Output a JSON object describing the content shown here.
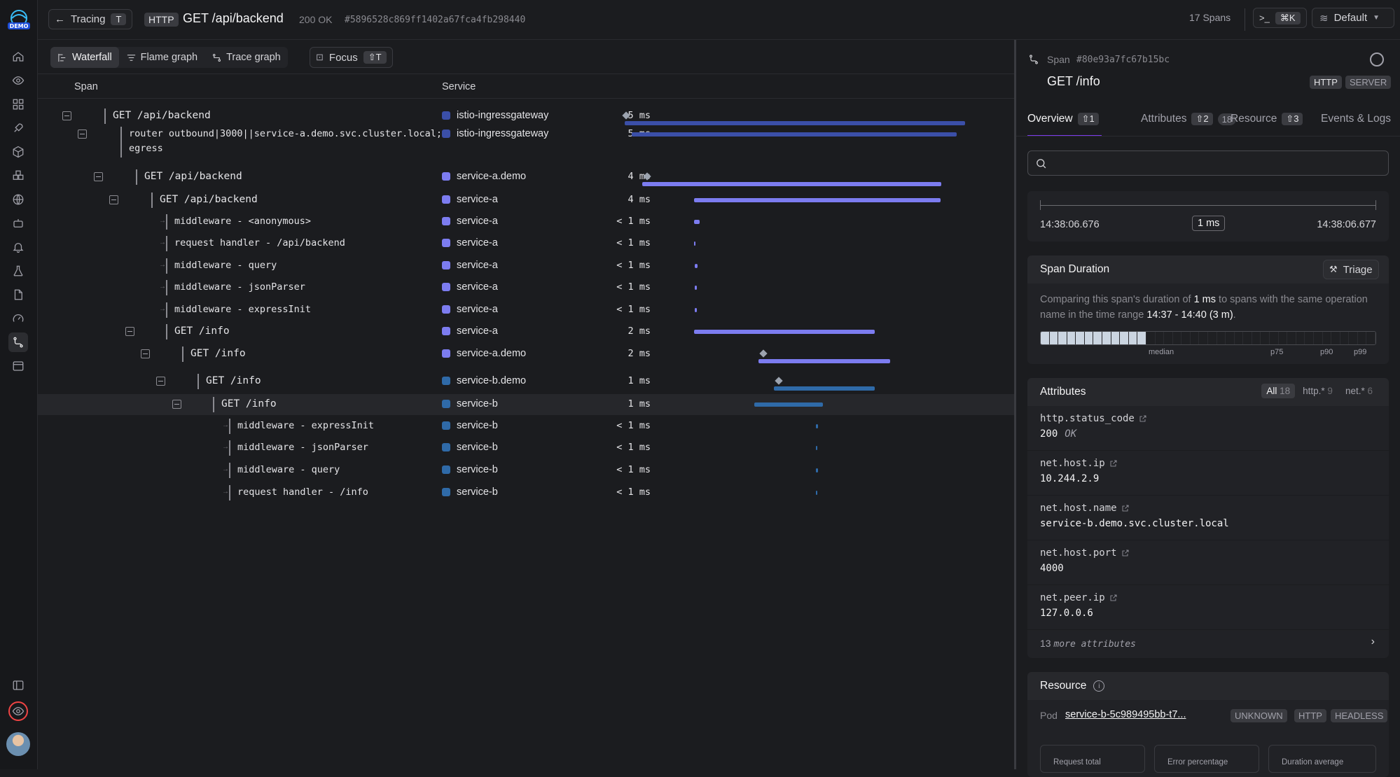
{
  "app": {
    "logo_text": "DEMO"
  },
  "header": {
    "back_label": "Tracing",
    "back_key": "T",
    "protocol": "HTTP",
    "title": "GET /api/backend",
    "status": "200 OK",
    "trace_id": "#5896528c869ff1402a67fca4fb298440",
    "spans_count": "17 Spans",
    "cmd_key": "⌘K",
    "env_label": "Default"
  },
  "views": {
    "tabs": [
      "Waterfall",
      "Flame graph",
      "Trace graph"
    ],
    "active": "Waterfall",
    "focus_label": "Focus",
    "focus_key": "⇧T"
  },
  "columns": {
    "span": "Span",
    "service": "Service"
  },
  "colors": {
    "istio": "#3b4fa8",
    "service_a": "#7c7cf0",
    "service_b": "#2f6aa8"
  },
  "spans": [
    {
      "name": "GET /api/backend",
      "service": "istio-ingressgateway",
      "duration": "5 ms",
      "selected": false
    },
    {
      "name": "router outbound|3000||service-a.demo.svc.cluster.local;",
      "name2": "egress",
      "service": "istio-ingressgateway",
      "duration": "5 ms",
      "selected": false
    },
    {
      "name": "GET /api/backend",
      "service": "service-a.demo",
      "duration": "4 ms",
      "selected": false
    },
    {
      "name": "GET /api/backend",
      "service": "service-a",
      "duration": "4 ms",
      "selected": false
    },
    {
      "name": "middleware - <anonymous>",
      "service": "service-a",
      "duration": "< 1 ms",
      "selected": false
    },
    {
      "name": "request handler - /api/backend",
      "service": "service-a",
      "duration": "< 1 ms",
      "selected": false
    },
    {
      "name": "middleware - query",
      "service": "service-a",
      "duration": "< 1 ms",
      "selected": false
    },
    {
      "name": "middleware - jsonParser",
      "service": "service-a",
      "duration": "< 1 ms",
      "selected": false
    },
    {
      "name": "middleware - expressInit",
      "service": "service-a",
      "duration": "< 1 ms",
      "selected": false
    },
    {
      "name": "GET /info",
      "service": "service-a",
      "duration": "2 ms",
      "selected": false
    },
    {
      "name": "GET /info",
      "service": "service-a.demo",
      "duration": "2 ms",
      "selected": false
    },
    {
      "name": "GET /info",
      "service": "service-b.demo",
      "duration": "1 ms",
      "selected": false
    },
    {
      "name": "GET /info",
      "service": "service-b",
      "duration": "1 ms",
      "selected": true
    },
    {
      "name": "middleware - expressInit",
      "service": "service-b",
      "duration": "< 1 ms",
      "selected": false
    },
    {
      "name": "middleware - jsonParser",
      "service": "service-b",
      "duration": "< 1 ms",
      "selected": false
    },
    {
      "name": "middleware - query",
      "service": "service-b",
      "duration": "< 1 ms",
      "selected": false
    },
    {
      "name": "request handler - /info",
      "service": "service-b",
      "duration": "< 1 ms",
      "selected": false
    }
  ],
  "panel": {
    "span_label": "Span",
    "span_id": "#80e93a7fc67b15bc",
    "title": "GET /info",
    "tags": [
      "HTTP",
      "SERVER"
    ],
    "tabs": [
      {
        "label": "Overview",
        "key": "⇧1"
      },
      {
        "label": "Attributes",
        "key": "⇧2",
        "count": "18"
      },
      {
        "label": "Resource",
        "key": "⇧3"
      },
      {
        "label": "Events & Logs"
      }
    ],
    "search_placeholder": "",
    "timeline": {
      "start": "14:38:06.676",
      "mid": "1 ms",
      "end": "14:38:06.677"
    },
    "duration": {
      "title": "Span Duration",
      "triage": "Triage",
      "desc_a": "Comparing this span's duration of ",
      "desc_b": "1 ms",
      "desc_c": " to spans with the same operation name in the time range ",
      "desc_d": "14:37 - 14:40 (3 m)",
      "desc_e": ".",
      "labels": [
        "median",
        "p75",
        "p90",
        "p99"
      ]
    },
    "attributes": {
      "title": "Attributes",
      "filters": [
        {
          "label": "All",
          "count": "18"
        },
        {
          "label": "http.*",
          "count": "9"
        },
        {
          "label": "net.*",
          "count": "6"
        }
      ],
      "items": [
        {
          "key": "http.status_code",
          "value": "200",
          "extra": "OK"
        },
        {
          "key": "net.host.ip",
          "value": "10.244.2.9"
        },
        {
          "key": "net.host.name",
          "value": "service-b.demo.svc.cluster.local"
        },
        {
          "key": "net.host.port",
          "value": "4000"
        },
        {
          "key": "net.peer.ip",
          "value": "127.0.0.6"
        }
      ],
      "more_count": "13",
      "more_label": "more attributes"
    },
    "resource": {
      "title": "Resource",
      "pod_label": "Pod",
      "pod_value": "service-b-5c989495bb-t7...",
      "pod_tags": [
        "UNKNOWN",
        "HTTP",
        "HEADLESS"
      ],
      "metrics": [
        "Request total",
        "Error percentage",
        "Duration average"
      ]
    }
  }
}
